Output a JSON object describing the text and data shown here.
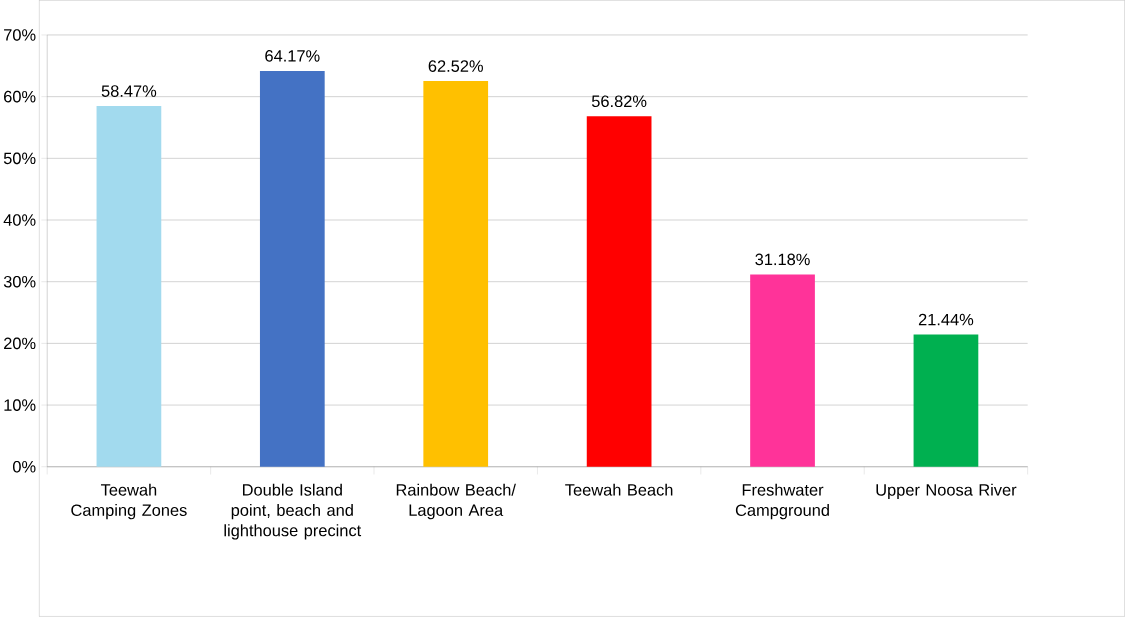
{
  "chart_data": {
    "type": "bar",
    "categories": [
      "Teewah Camping Zones",
      "Double Island point, beach and lighthouse precinct",
      "Rainbow Beach/ Lagoon Area",
      "Teewah Beach",
      "Freshwater Campground",
      "Upper Noosa River"
    ],
    "values": [
      58.47,
      64.17,
      62.52,
      56.82,
      31.18,
      21.44
    ],
    "value_labels": [
      "58.47%",
      "64.17%",
      "62.52%",
      "56.82%",
      "31.18%",
      "21.44%"
    ],
    "colors": [
      "#a2daee",
      "#4472c4",
      "#ffc000",
      "#ff0000",
      "#ff3399",
      "#00b050"
    ],
    "ylim": [
      0,
      70
    ],
    "yticks": [
      {
        "value": 0,
        "label": "0%"
      },
      {
        "value": 10,
        "label": "10%"
      },
      {
        "value": 20,
        "label": "20%"
      },
      {
        "value": 30,
        "label": "30%"
      },
      {
        "value": 40,
        "label": "40%"
      },
      {
        "value": 50,
        "label": "50%"
      },
      {
        "value": 60,
        "label": "60%"
      },
      {
        "value": 70,
        "label": "70%"
      }
    ],
    "grid": "y"
  }
}
